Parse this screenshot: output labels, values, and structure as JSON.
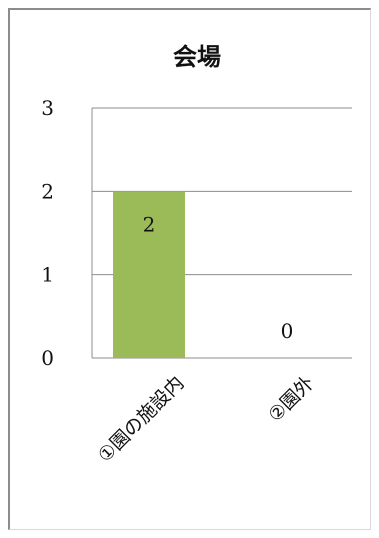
{
  "chart_data": {
    "type": "bar",
    "title": "会場",
    "categories": [
      "①園の施設内",
      "②園外"
    ],
    "values": [
      2,
      0
    ],
    "ylim": [
      0,
      3
    ],
    "yticks": [
      0,
      1,
      2,
      3
    ],
    "grid": true,
    "legend": "none",
    "bar_color": "#9bbb59",
    "data_labels": [
      "2",
      "0"
    ]
  }
}
